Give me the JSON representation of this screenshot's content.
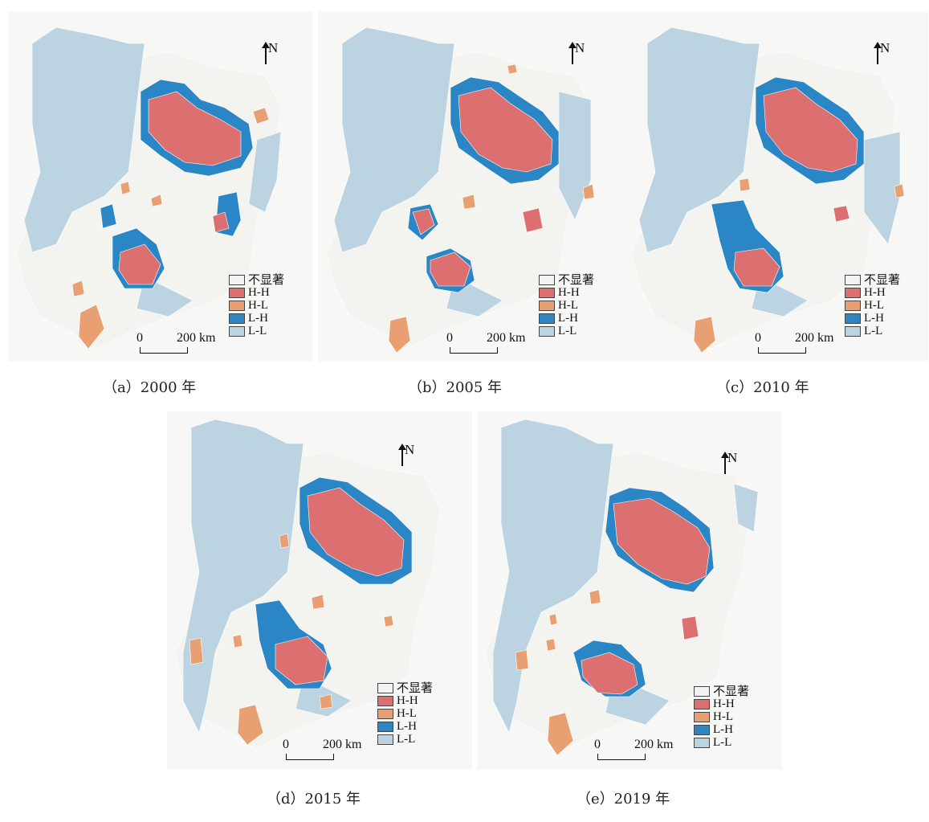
{
  "colors": {
    "not_significant": "#f3f3ef",
    "hh": "#dc7070",
    "hl": "#e8a072",
    "lh": "#2a86c4",
    "ll": "#bcd3e2",
    "page_bg": "#f7f7f5"
  },
  "legend": {
    "items": [
      {
        "label": "不显著",
        "key": "not_significant"
      },
      {
        "label": "H-H",
        "key": "hh"
      },
      {
        "label": "H-L",
        "key": "hl"
      },
      {
        "label": "L-H",
        "key": "lh"
      },
      {
        "label": "L-L",
        "key": "ll"
      }
    ]
  },
  "north_label": "N",
  "scale": {
    "zero": "0",
    "distance": "200 km"
  },
  "panels": [
    {
      "id": "a",
      "caption": "（a）2000 年"
    },
    {
      "id": "b",
      "caption": "（b）2005 年"
    },
    {
      "id": "c",
      "caption": "（c）2010 年"
    },
    {
      "id": "d",
      "caption": "（d）2015 年"
    },
    {
      "id": "e",
      "caption": "（e）2019 年"
    }
  ]
}
